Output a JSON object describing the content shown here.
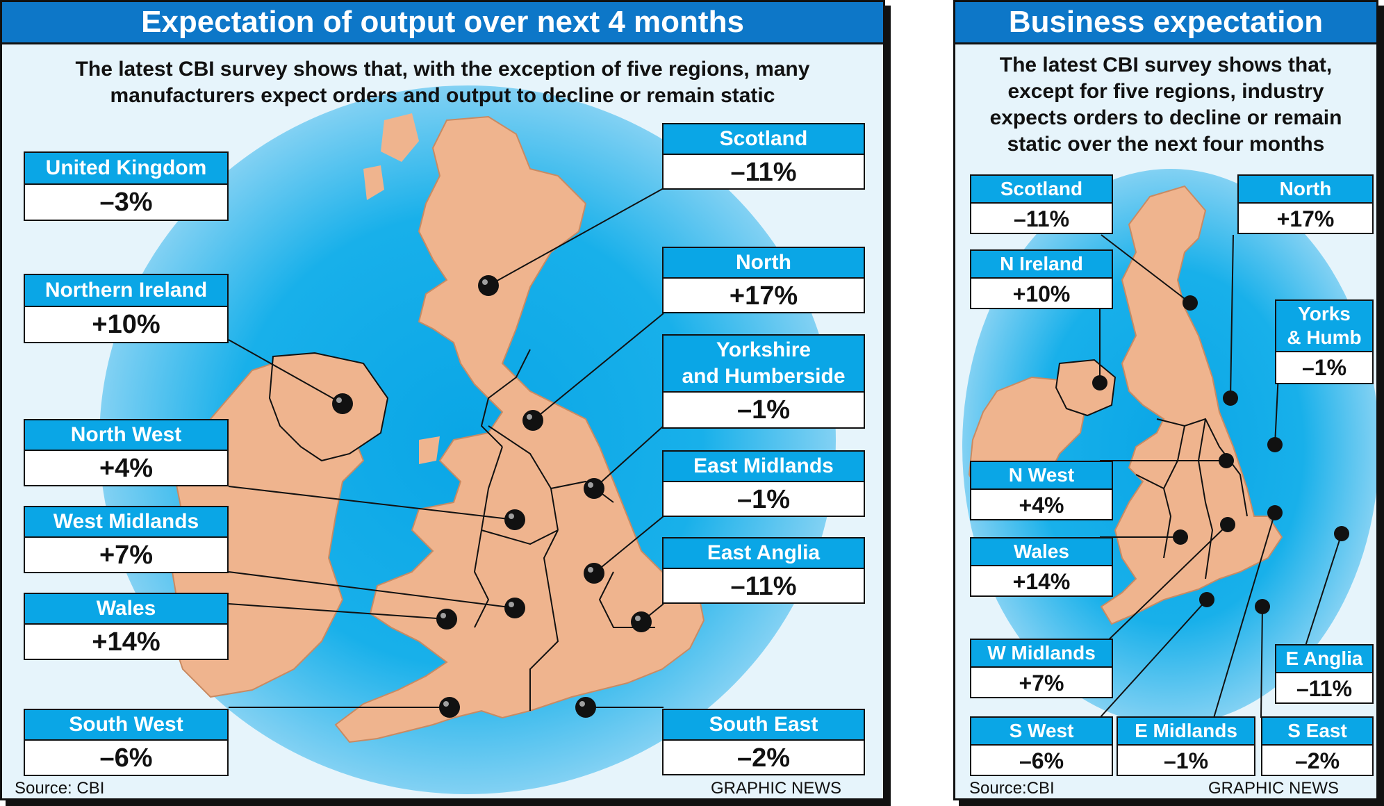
{
  "left": {
    "title": "Expectation of output over next 4 months",
    "subtitle_line1": "The latest CBI survey shows that, with the exception of five regions, many",
    "subtitle_line2": "manufacturers expect orders and output to decline or remain static",
    "source": "Source: CBI",
    "credit": "GRAPHIC NEWS",
    "regions": [
      {
        "name": "United Kingdom",
        "value": "–3%"
      },
      {
        "name": "Northern Ireland",
        "value": "+10%"
      },
      {
        "name": "North West",
        "value": "+4%"
      },
      {
        "name": "West Midlands",
        "value": "+7%"
      },
      {
        "name": "Wales",
        "value": "+14%"
      },
      {
        "name": "South West",
        "value": "–6%"
      },
      {
        "name": "Scotland",
        "value": "–11%"
      },
      {
        "name": "North",
        "value": "+17%"
      },
      {
        "name_line1": "Yorkshire",
        "name_line2": "and Humberside",
        "value": "–1%"
      },
      {
        "name": "East Midlands",
        "value": "–1%"
      },
      {
        "name": "East Anglia",
        "value": "–11%"
      },
      {
        "name": "South East",
        "value": "–2%"
      }
    ]
  },
  "right": {
    "title": "Business expectation",
    "subtitle_lines": [
      "The latest CBI survey shows that,",
      "except for five regions, industry",
      "expects orders to decline or remain",
      "static over the next four months"
    ],
    "source": "Source:CBI",
    "credit": "GRAPHIC NEWS",
    "regions": [
      {
        "name": "Scotland",
        "value": "–11%"
      },
      {
        "name": "North",
        "value": "+17%"
      },
      {
        "name": "N Ireland",
        "value": "+10%"
      },
      {
        "name_line1": "Yorks",
        "name_line2": "& Humb",
        "value": "–1%"
      },
      {
        "name": "N West",
        "value": "+4%"
      },
      {
        "name": "Wales",
        "value": "+14%"
      },
      {
        "name": "W Midlands",
        "value": "+7%"
      },
      {
        "name": "E Anglia",
        "value": "–11%"
      },
      {
        "name": "S West",
        "value": "–6%"
      },
      {
        "name": "E Midlands",
        "value": "–1%"
      },
      {
        "name": "S East",
        "value": "–2%"
      }
    ]
  },
  "colors": {
    "land": "#efb48e",
    "sea": "#0aa6e6",
    "title_bar": "#0d77c8",
    "label_head": "#0aa6e6"
  }
}
